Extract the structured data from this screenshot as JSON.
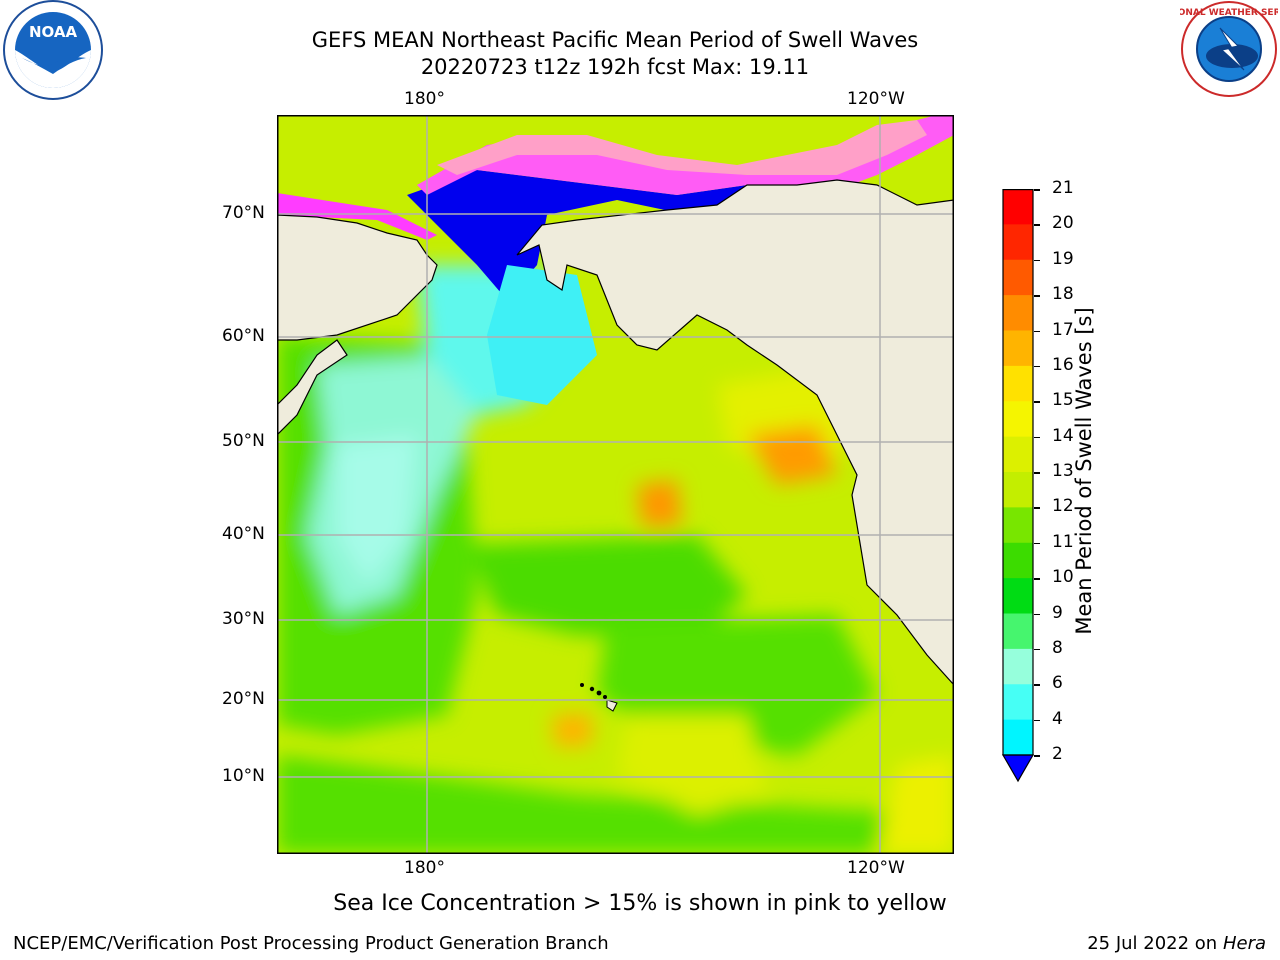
{
  "header": {
    "title_line1": "GEFS MEAN Northeast Pacific Mean Period of Swell Waves",
    "title_line2": "20220723 t12z 192h fcst   Max: 19.11"
  },
  "logos": {
    "left": "NOAA",
    "right": "NATIONAL WEATHER SERVICE"
  },
  "map": {
    "lon_labels_top": [
      "180°",
      "120°W"
    ],
    "lon_labels_bottom": [
      "180°",
      "120°W"
    ],
    "lat_labels": [
      "70°N",
      "60°N",
      "50°N",
      "40°N",
      "30°N",
      "20°N",
      "10°N"
    ],
    "land_color": "#efecdc",
    "grid_color": "#b0b0b0"
  },
  "colorbar": {
    "label": "Mean Period of Swell Waves [s]",
    "ticks": [
      "21",
      "20",
      "19",
      "18",
      "17",
      "16",
      "15",
      "14",
      "13",
      "12",
      "11",
      "10",
      "9",
      "8",
      "6",
      "4",
      "2"
    ],
    "colors": [
      "#ff0000",
      "#ff2600",
      "#ff5a00",
      "#ff8c00",
      "#ffb400",
      "#ffe100",
      "#f5f500",
      "#dcf000",
      "#c3ee00",
      "#78e600",
      "#3cdc00",
      "#00dc14",
      "#46f56e",
      "#96ffdc",
      "#46fff5",
      "#00f5ff",
      "#0080ff"
    ],
    "extend_color": "#0000ff"
  },
  "note": "Sea Ice Concentration > 15% is shown in pink to yellow",
  "footer": {
    "left": "NCEP/EMC/Verification Post Processing Product Generation Branch",
    "right_prefix": "25 Jul 2022 on ",
    "right_host": "Hera"
  }
}
